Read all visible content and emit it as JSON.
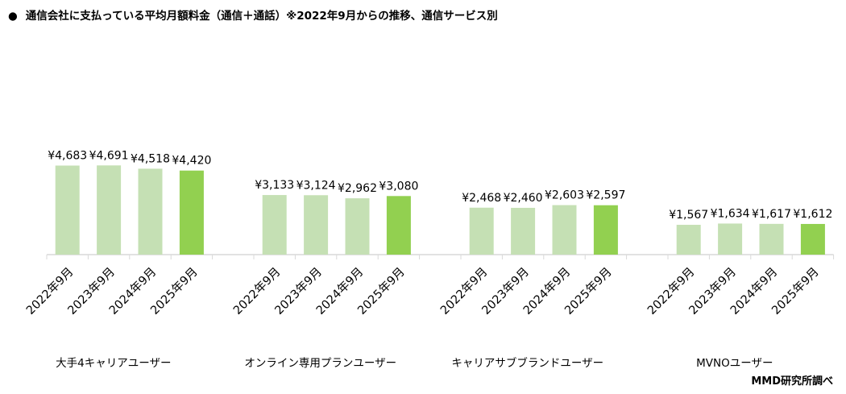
{
  "title": "通信会社に支払っている平均月額料金（通信＋通話）※2022年9月からの推移、通信サービス別",
  "title_bullet": "●",
  "source": "MMD研究所調べ",
  "chart_data": {
    "type": "bar",
    "title": "通信会社に支払っている平均月額料金（通信＋通話）※2022年9月からの推移、通信サービス別",
    "xlabel": "",
    "ylabel": "",
    "ylim": [
      0,
      10000
    ],
    "grid": false,
    "legend": "none",
    "value_prefix": "¥",
    "colors": {
      "previous_years": "#c5e0b4",
      "latest_year": "#92d050",
      "axis": "#d9d9d9"
    },
    "categories": [
      "2022年9月",
      "2023年9月",
      "2024年9月",
      "2025年9月"
    ],
    "groups": [
      {
        "name": "大手4キャリアユーザー",
        "values": [
          4683,
          4691,
          4518,
          4420
        ],
        "labels": [
          "¥4,683",
          "¥4,691",
          "¥4,518",
          "¥4,420"
        ]
      },
      {
        "name": "オンライン専用プランユーザー",
        "values": [
          3133,
          3124,
          2962,
          3080
        ],
        "labels": [
          "¥3,133",
          "¥3,124",
          "¥2,962",
          "¥3,080"
        ]
      },
      {
        "name": "キャリアサブブランドユーザー",
        "values": [
          2468,
          2460,
          2603,
          2597
        ],
        "labels": [
          "¥2,468",
          "¥2,460",
          "¥2,603",
          "¥2,597"
        ]
      },
      {
        "name": "MVNOユーザー",
        "values": [
          1567,
          1634,
          1617,
          1612
        ],
        "labels": [
          "¥1,567",
          "¥1,634",
          "¥1,617",
          "¥1,612"
        ]
      }
    ]
  }
}
